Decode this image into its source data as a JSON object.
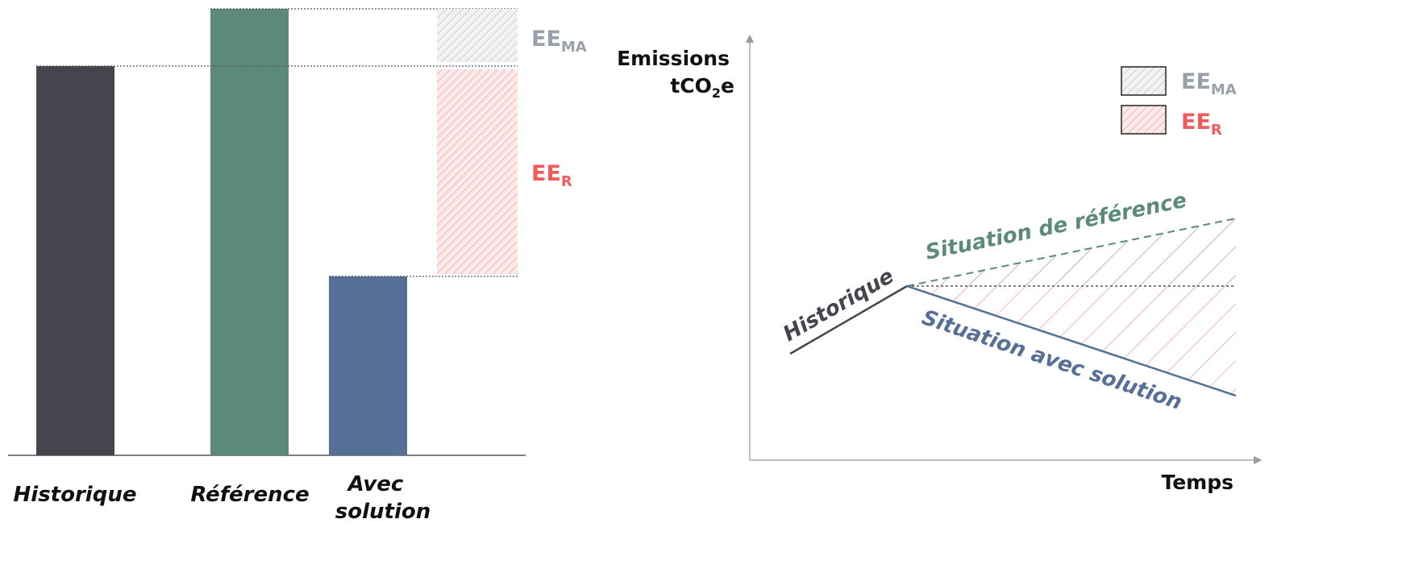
{
  "left_chart": {
    "categories": [
      {
        "label": "Historique",
        "color": "#44454d"
      },
      {
        "label": "Référence",
        "color": "#5b8a7b"
      },
      {
        "label_line1": "Avec",
        "label_line2": "solution",
        "color": "#566f96"
      }
    ],
    "ee_ma": {
      "main": "EE",
      "sub": "MA",
      "color": "#9aa0ab"
    },
    "ee_r": {
      "main": "EE",
      "sub": "R",
      "color": "#f25b5b"
    }
  },
  "right_chart": {
    "y_axis": {
      "line1": "Emissions",
      "line2_pre": "tCO",
      "line2_sub": "2",
      "line2_post": "e"
    },
    "x_axis": "Temps",
    "legend": [
      {
        "main": "EE",
        "sub": "MA",
        "color": "#9aa0ab",
        "fill": "grey-hatch"
      },
      {
        "main": "EE",
        "sub": "R",
        "color": "#f25b5b",
        "fill": "red-hatch"
      }
    ],
    "curves": {
      "historique": {
        "label": "Historique",
        "color": "#44454d"
      },
      "reference": {
        "label": "Situation de référence",
        "color": "#5b8a7b"
      },
      "solution": {
        "label": "Situation avec solution",
        "color": "#566f96"
      }
    }
  }
}
